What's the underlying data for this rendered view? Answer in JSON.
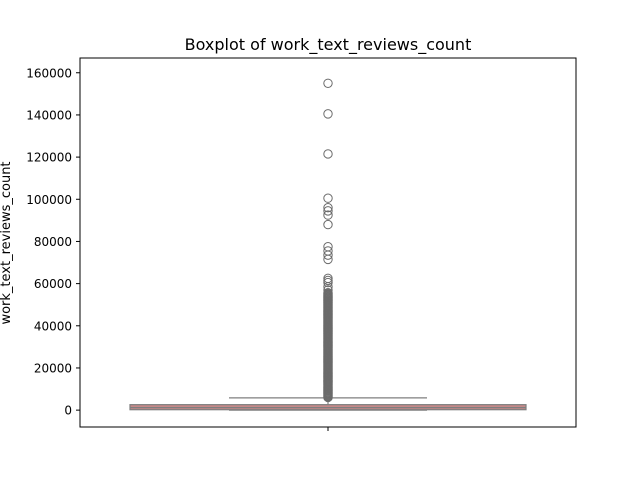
{
  "chart_data": {
    "type": "boxplot",
    "title": "Boxplot of work_text_reviews_count",
    "xlabel": "",
    "ylabel": "work_text_reviews_count",
    "ylim": [
      -8000,
      167000
    ],
    "yticks": [
      0,
      20000,
      40000,
      60000,
      80000,
      100000,
      120000,
      140000,
      160000
    ],
    "ytick_labels": [
      "0",
      "20000",
      "40000",
      "60000",
      "80000",
      "100000",
      "120000",
      "140000",
      "160000"
    ],
    "grid": false,
    "legend": "none",
    "box": {
      "q1": 200,
      "median": 1200,
      "q3": 2600,
      "whisker_low": 0,
      "whisker_high": 5800
    },
    "outliers_dense_range": [
      6000,
      56000
    ],
    "outliers": [
      57000,
      58500,
      60500,
      61500,
      62500,
      71500,
      73500,
      75500,
      77500,
      88000,
      92500,
      94500,
      96000,
      100500,
      121500,
      140500,
      155000
    ],
    "colors": {
      "box_fill": "#c58989",
      "lines": "#7f7f7f",
      "outlier_edge": "#6b6b6b"
    }
  }
}
